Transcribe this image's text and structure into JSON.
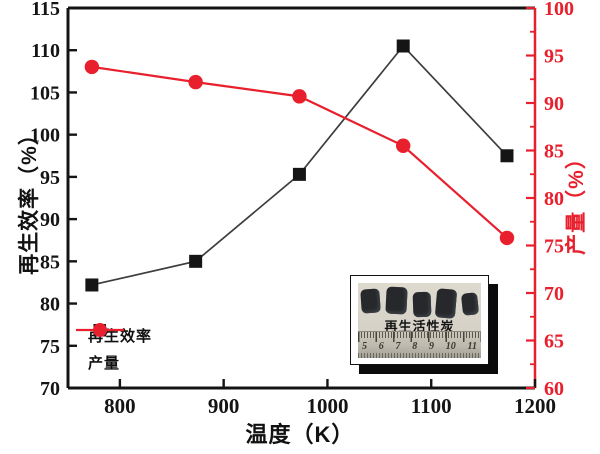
{
  "colors": {
    "axis_black": "#141414",
    "series_black_marker": "#151515",
    "series_black_line": "#3d3d3d",
    "red": "#e8202d",
    "background": "#ffffff"
  },
  "chart_data": {
    "type": "line",
    "title": "",
    "xlabel": "温度（K）",
    "xlim": [
      750,
      1200
    ],
    "x_ticks": [
      800,
      900,
      1000,
      1100,
      1200
    ],
    "left_axis": {
      "label": "再生效率（%）",
      "lim": [
        70,
        115
      ],
      "ticks": [
        70,
        75,
        80,
        85,
        90,
        95,
        100,
        105,
        110,
        115
      ],
      "color": "#141414"
    },
    "right_axis": {
      "label": "产量（%）",
      "lim": [
        60,
        100
      ],
      "ticks": [
        60,
        65,
        70,
        75,
        80,
        85,
        90,
        95,
        100
      ],
      "minor_step": 2.5,
      "color": "#e8202d"
    },
    "grid": false,
    "legend_position": "lower-left",
    "series": [
      {
        "name": "再生效率",
        "axis": "left",
        "marker": "square",
        "marker_color": "#151515",
        "line_color": "#3d3d3d",
        "x": [
          773,
          873,
          973,
          1073,
          1173
        ],
        "y": [
          82.2,
          85.0,
          95.3,
          110.5,
          97.5
        ]
      },
      {
        "name": "产量",
        "axis": "right",
        "marker": "circle",
        "marker_color": "#e8202d",
        "line_color": "#e8202d",
        "x": [
          773,
          873,
          973,
          1073,
          1173
        ],
        "y": [
          93.8,
          92.2,
          90.7,
          85.5,
          75.8
        ]
      }
    ]
  },
  "inset": {
    "label": "再生活性炭",
    "chunk_count": 5,
    "ruler_numbers": [
      "5",
      "6",
      "7",
      "8",
      "9",
      "10",
      "11"
    ]
  }
}
